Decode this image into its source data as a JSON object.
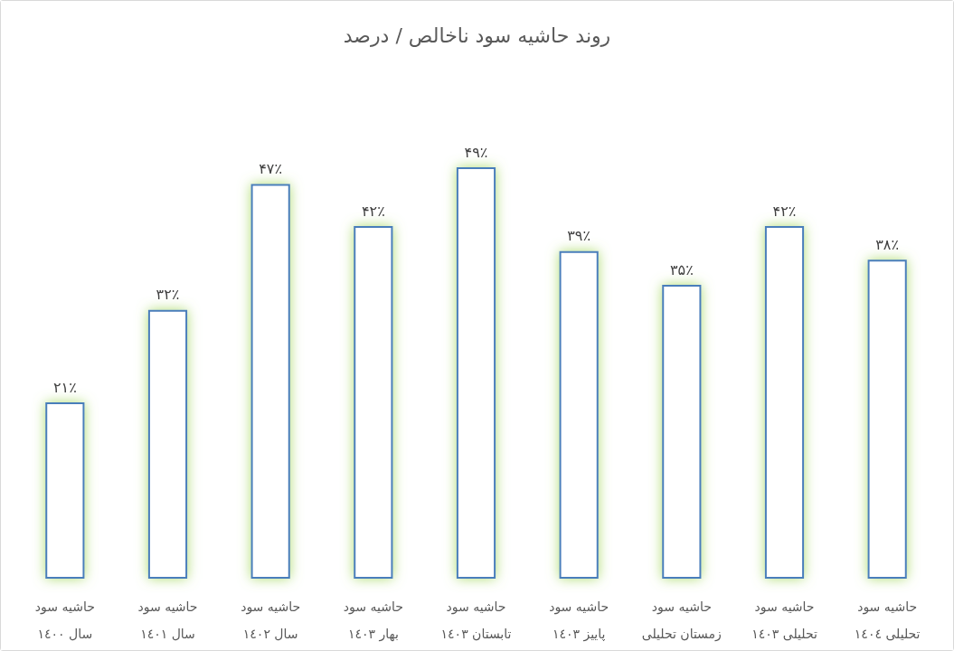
{
  "chart_data": {
    "type": "bar",
    "title": "روند حاشیه سود ناخالص / درصد",
    "categories": [
      "حاشیه سود\nسال ١٤٠٠",
      "حاشیه سود\nسال ١٤٠١",
      "حاشیه سود\nسال ١٤٠٢",
      "حاشیه سود\nبهار ١٤٠٣",
      "حاشیه سود\nتابستان ١٤٠٣",
      "حاشیه سود\nپاییز ١٤٠٣",
      "حاشیه سود\nزمستان تحلیلی",
      "حاشیه سود\nتحلیلی ١٤٠٣",
      "حاشیه سود\nتحلیلی ١٤٠٤"
    ],
    "values": [
      21,
      32,
      47,
      42,
      49,
      39,
      35,
      42,
      38
    ],
    "color": "#4a7ebb",
    "value_labels": [
      "۲۱٪",
      "۳۲٪",
      "۴۷٪",
      "۴۲٪",
      "۴۹٪",
      "۳۹٪",
      "۳۵٪",
      "۴۲٪",
      "۳۸٪"
    ],
    "tick_labels": "x"
  }
}
